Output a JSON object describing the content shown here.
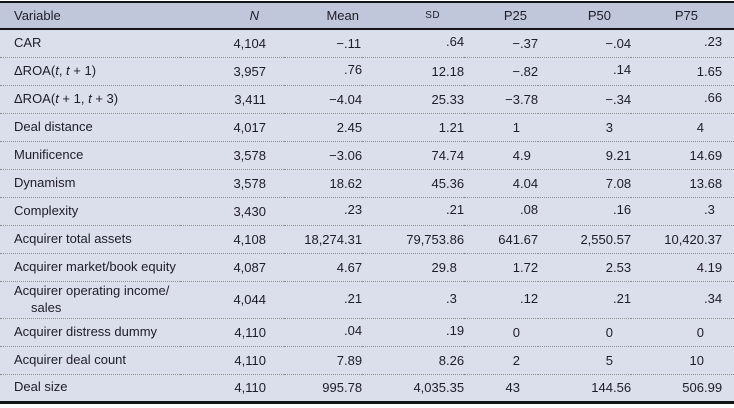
{
  "colors": {
    "header_bg": "#c1c7db",
    "row_bg": "#dbdfeb",
    "rule": "#141414",
    "dotted_rule": "#8f8f8f",
    "text": "#1d1d27"
  },
  "table": {
    "columns": [
      {
        "key": "variable",
        "label": "Variable"
      },
      {
        "key": "n",
        "label": "N",
        "italic": true
      },
      {
        "key": "mean",
        "label": "Mean"
      },
      {
        "key": "sd",
        "label": "SD",
        "small_caps": true
      },
      {
        "key": "p25",
        "label": "P25"
      },
      {
        "key": "p50",
        "label": "P50"
      },
      {
        "key": "p75",
        "label": "P75"
      }
    ],
    "rows": [
      {
        "variable": "CAR",
        "n": "4,104",
        "mean": "−.11",
        "sd": ".64",
        "p25": "−.37",
        "p50": "−.04",
        "p75": ".23"
      },
      {
        "variable": "ΔROA(t, t + 1)",
        "variable_html": "ΔROA(<i>t</i>, <i>t</i> + 1)",
        "n": "3,957",
        "mean": ".76",
        "sd": "12.18",
        "p25": "−.82",
        "p50": ".14",
        "p75": "1.65"
      },
      {
        "variable": "ΔROA(t + 1, t + 3)",
        "variable_html": "ΔROA(<i>t</i> + 1, <i>t</i> + 3)",
        "n": "3,411",
        "mean": "−4.04",
        "sd": "25.33",
        "p25": "−3.78",
        "p50": "−.34",
        "p75": ".66"
      },
      {
        "variable": "Deal distance",
        "n": "4,017",
        "mean": "2.45",
        "sd": "1.21",
        "p25": "1",
        "p50": "3",
        "p75": "4"
      },
      {
        "variable": "Munificence",
        "n": "3,578",
        "mean": "−3.06",
        "sd": "74.74",
        "p25": "4.9",
        "p50": "9.21",
        "p75": "14.69"
      },
      {
        "variable": "Dynamism",
        "n": "3,578",
        "mean": "18.62",
        "sd": "45.36",
        "p25": "4.04",
        "p50": "7.08",
        "p75": "13.68"
      },
      {
        "variable": "Complexity",
        "n": "3,430",
        "mean": ".23",
        "sd": ".21",
        "p25": ".08",
        "p50": ".16",
        "p75": ".3"
      },
      {
        "variable": "Acquirer total assets",
        "n": "4,108",
        "mean": "18,274.31",
        "sd": "79,753.86",
        "p25": "641.67",
        "p50": "2,550.57",
        "p75": "10,420.37"
      },
      {
        "variable": "Acquirer market/book equity",
        "n": "4,087",
        "mean": "4.67",
        "sd": "29.8",
        "p25": "1.72",
        "p50": "2.53",
        "p75": "4.19"
      },
      {
        "variable": "Acquirer operating income/\nsales",
        "two_line": true,
        "n": "4,044",
        "mean": ".21",
        "sd": ".3",
        "p25": ".12",
        "p50": ".21",
        "p75": ".34"
      },
      {
        "variable": "Acquirer distress dummy",
        "n": "4,110",
        "mean": ".04",
        "sd": ".19",
        "p25": "0",
        "p50": "0",
        "p75": "0"
      },
      {
        "variable": "Acquirer deal count",
        "n": "4,110",
        "mean": "7.89",
        "sd": "8.26",
        "p25": "2",
        "p50": "5",
        "p75": "10"
      },
      {
        "variable": "Deal size",
        "n": "4,110",
        "mean": "995.78",
        "sd": "4,035.35",
        "p25": "43",
        "p50": "144.56",
        "p75": "506.99"
      }
    ]
  }
}
